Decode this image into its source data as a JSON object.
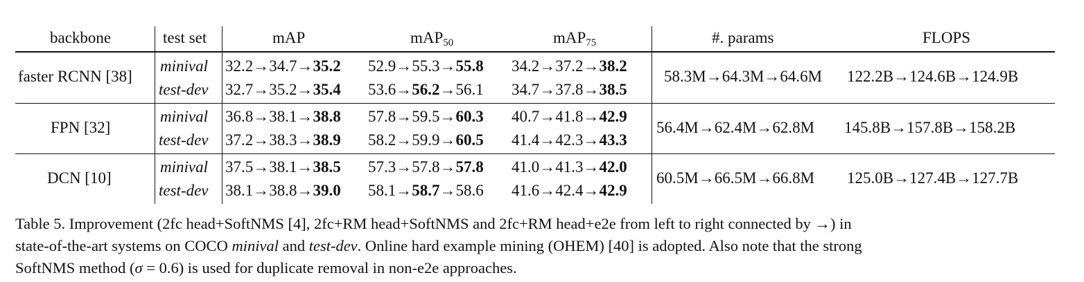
{
  "table": {
    "headers": {
      "backbone": "backbone",
      "test_set": "test set",
      "map": "mAP",
      "map50_base": "mAP",
      "map50_sub": "50",
      "map75_base": "mAP",
      "map75_sub": "75",
      "params": "#. params",
      "flops": "FLOPS"
    },
    "groups": [
      {
        "backbone": "faster RCNN [38]",
        "params": "58.3M→64.3M→64.6M",
        "flops": "122.2B→124.6B→124.9B",
        "rows": [
          {
            "test_set": "minival",
            "map": {
              "a": "32.2→34.7→",
              "b": "35.2",
              "c": ""
            },
            "map50": {
              "a": "52.9→55.3→",
              "b": "55.8",
              "c": ""
            },
            "map75": {
              "a": "34.2→37.2→",
              "b": "38.2",
              "c": ""
            }
          },
          {
            "test_set": "test-dev",
            "map": {
              "a": "32.7→35.2→",
              "b": "35.4",
              "c": ""
            },
            "map50": {
              "a": "53.6→",
              "b": "56.2",
              "c": "→56.1"
            },
            "map75": {
              "a": "34.7→37.8→",
              "b": "38.5",
              "c": ""
            }
          }
        ]
      },
      {
        "backbone": "FPN [32]",
        "params": "56.4M→62.4M→62.8M",
        "flops": "145.8B→157.8B→158.2B",
        "rows": [
          {
            "test_set": "minival",
            "map": {
              "a": "36.8→38.1→",
              "b": "38.8",
              "c": ""
            },
            "map50": {
              "a": "57.8→59.5→",
              "b": "60.3",
              "c": ""
            },
            "map75": {
              "a": "40.7→41.8→",
              "b": "42.9",
              "c": ""
            }
          },
          {
            "test_set": "test-dev",
            "map": {
              "a": "37.2→38.3→",
              "b": "38.9",
              "c": ""
            },
            "map50": {
              "a": "58.2→59.9→",
              "b": "60.5",
              "c": ""
            },
            "map75": {
              "a": "41.4→42.3→",
              "b": "43.3",
              "c": ""
            }
          }
        ]
      },
      {
        "backbone": "DCN [10]",
        "params": "60.5M→66.5M→66.8M",
        "flops": "125.0B→127.4B→127.7B",
        "rows": [
          {
            "test_set": "minival",
            "map": {
              "a": "37.5→38.1→",
              "b": "38.5",
              "c": ""
            },
            "map50": {
              "a": "57.3→57.8→",
              "b": "57.8",
              "c": ""
            },
            "map75": {
              "a": "41.0→41.3→",
              "b": "42.0",
              "c": ""
            }
          },
          {
            "test_set": "test-dev",
            "map": {
              "a": "38.1→38.8→",
              "b": "39.0",
              "c": ""
            },
            "map50": {
              "a": "58.1→",
              "b": "58.7",
              "c": "→58.6"
            },
            "map75": {
              "a": "41.6→42.4→",
              "b": "42.9",
              "c": ""
            }
          }
        ]
      }
    ]
  },
  "caption": {
    "line1": "Table 5. Improvement (2fc head+SoftNMS [4], 2fc+RM head+SoftNMS and 2fc+RM head+e2e from left to right connected by →) in",
    "line2_a": "state-of-the-art systems on COCO ",
    "line2_b": "minival",
    "line2_c": " and ",
    "line2_d": "test-dev",
    "line2_e": ". Online hard example mining (OHEM) [40] is adopted. Also note that the strong",
    "line3_a": "SoftNMS method (",
    "line3_b": "σ",
    "line3_c": " = 0.6) is used for duplicate removal in non-e2e approaches."
  }
}
